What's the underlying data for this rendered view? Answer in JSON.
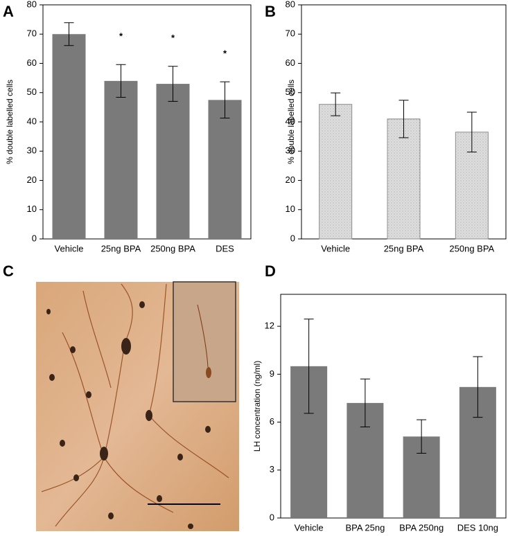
{
  "chart_data": [
    {
      "type": "bar",
      "panel": "A",
      "ylabel": "% double labelled cells",
      "categories": [
        "Vehicle",
        "25ng BPA",
        "250ng BPA",
        "DES"
      ],
      "values": [
        70,
        54,
        53,
        47.5
      ],
      "errors": [
        3.9,
        5.6,
        6,
        6.2
      ],
      "annotations": [
        null,
        "*",
        "*",
        "*"
      ],
      "color": "#7a7a7a",
      "ylim": [
        0,
        80
      ],
      "yticks": [
        0,
        10,
        20,
        30,
        40,
        50,
        60,
        70,
        80
      ]
    },
    {
      "type": "bar",
      "panel": "B",
      "ylabel": "% double labelled cells",
      "categories": [
        "Vehicle",
        "25ng BPA",
        "250ng BPA"
      ],
      "values": [
        46,
        41,
        36.5
      ],
      "errors": [
        3.9,
        6.4,
        6.8
      ],
      "color": "#dedede",
      "ylim": [
        0,
        80
      ],
      "yticks": [
        0,
        10,
        20,
        30,
        40,
        50,
        60,
        70,
        80
      ]
    },
    {
      "type": "bar",
      "panel": "D",
      "ylabel": "LH concentration (ng/ml)",
      "categories": [
        "Vehicle",
        "BPA 25ng",
        "BPA 250ng",
        "DES 10ng"
      ],
      "values": [
        9.5,
        7.2,
        5.1,
        8.2
      ],
      "errors": [
        2.95,
        1.5,
        1.05,
        1.9
      ],
      "color": "#7a7a7a",
      "ylim": [
        0,
        14
      ],
      "yticks": [
        0,
        3,
        6,
        9,
        12
      ]
    }
  ],
  "image": {
    "panel": "C"
  }
}
